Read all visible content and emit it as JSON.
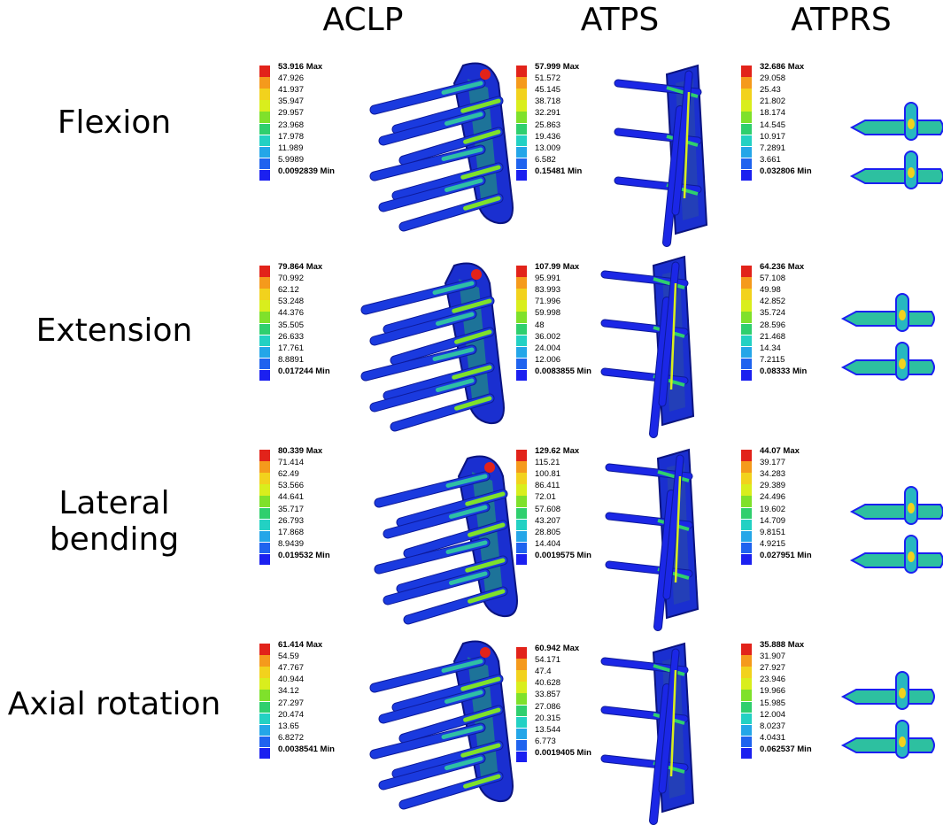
{
  "columns": [
    "ACLP",
    "ATPS",
    "ATPRS"
  ],
  "rows": [
    "Flexion",
    "Extension",
    "Lateral bending",
    "Axial rotation"
  ],
  "legend_colors": [
    "#e2231a",
    "#f59a1c",
    "#f2d21d",
    "#d9ee1d",
    "#7fe12b",
    "#2fcf6e",
    "#23d1c3",
    "#24a6e8",
    "#1f63ef",
    "#1b20f0"
  ],
  "legends": [
    [
      {
        "max": "53.916",
        "min": "0.0092839",
        "mids": [
          "47.926",
          "41.937",
          "35.947",
          "29.957",
          "23.968",
          "17.978",
          "11.989",
          "5.9989"
        ]
      },
      {
        "max": "57.999",
        "min": "0.15481",
        "mids": [
          "51.572",
          "45.145",
          "38.718",
          "32.291",
          "25.863",
          "19.436",
          "13.009",
          "6.582"
        ]
      },
      {
        "max": "32.686",
        "min": "0.032806",
        "mids": [
          "29.058",
          "25.43",
          "21.802",
          "18.174",
          "14.545",
          "10.917",
          "7.2891",
          "3.661"
        ]
      }
    ],
    [
      {
        "max": "79.864",
        "min": "0.017244",
        "mids": [
          "70.992",
          "62.12",
          "53.248",
          "44.376",
          "35.505",
          "26.633",
          "17.761",
          "8.8891"
        ]
      },
      {
        "max": "107.99",
        "min": "0.0083855",
        "mids": [
          "95.991",
          "83.993",
          "71.996",
          "59.998",
          "48",
          "36.002",
          "24.004",
          "12.006"
        ]
      },
      {
        "max": "64.236",
        "min": "0.08333",
        "mids": [
          "57.108",
          "49.98",
          "42.852",
          "35.724",
          "28.596",
          "21.468",
          "14.34",
          "7.2115"
        ]
      }
    ],
    [
      {
        "max": "80.339",
        "min": "0.019532",
        "mids": [
          "71.414",
          "62.49",
          "53.566",
          "44.641",
          "35.717",
          "26.793",
          "17.868",
          "8.9439"
        ]
      },
      {
        "max": "129.62",
        "min": "0.0019575",
        "mids": [
          "115.21",
          "100.81",
          "86.411",
          "72.01",
          "57.608",
          "43.207",
          "28.805",
          "14.404"
        ]
      },
      {
        "max": "44.07",
        "min": "0.027951",
        "mids": [
          "39.177",
          "34.283",
          "29.389",
          "24.496",
          "19.602",
          "14.709",
          "9.8151",
          "4.9215"
        ]
      }
    ],
    [
      {
        "max": "61.414",
        "min": "0.0038541",
        "mids": [
          "54.59",
          "47.767",
          "40.944",
          "34.12",
          "27.297",
          "20.474",
          "13.65",
          "6.8272"
        ]
      },
      {
        "max": "60.942",
        "min": "0.0019405",
        "mids": [
          "54.171",
          "47.4",
          "40.628",
          "33.857",
          "27.086",
          "20.315",
          "13.544",
          "6.773"
        ]
      },
      {
        "max": "35.888",
        "min": "0.062537",
        "mids": [
          "31.907",
          "27.927",
          "23.946",
          "19.966",
          "15.985",
          "12.004",
          "8.0237",
          "4.0431"
        ]
      }
    ]
  ],
  "max_suffix": "Max",
  "min_suffix": "Min"
}
